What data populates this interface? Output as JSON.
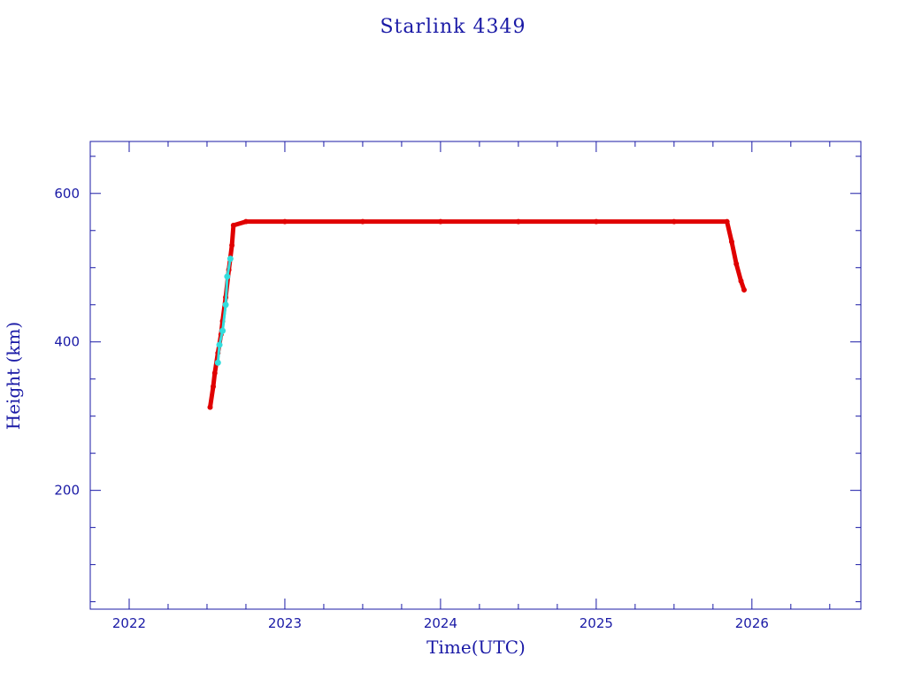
{
  "chart_data": {
    "type": "scatter",
    "title": "Starlink 4349",
    "xlabel": "Time(UTC)",
    "ylabel": "Height (km)",
    "xlim": [
      2021.75,
      2026.7
    ],
    "ylim": [
      40,
      670
    ],
    "x_ticks": [
      "2022",
      "2023",
      "2024",
      "2025",
      "2026"
    ],
    "x_tick_values": [
      2022,
      2023,
      2024,
      2025,
      2026
    ],
    "y_ticks": [
      "200",
      "400",
      "600"
    ],
    "y_tick_values": [
      200,
      400,
      600
    ],
    "grid": false,
    "legend": "none",
    "axis_color": "#1a1aa6",
    "series": [
      {
        "color": "#e00000",
        "x": [
          2022.52,
          2022.54,
          2022.55,
          2022.57,
          2022.59,
          2022.6,
          2022.62,
          2022.64,
          2022.66,
          2022.67,
          2022.75,
          2023.0,
          2023.5,
          2024.0,
          2024.5,
          2025.0,
          2025.5,
          2025.84,
          2025.87,
          2025.9,
          2025.93,
          2025.95
        ],
        "y": [
          312,
          340,
          358,
          385,
          410,
          428,
          460,
          497,
          530,
          557,
          562,
          562,
          562,
          562,
          562,
          562,
          562,
          562,
          535,
          505,
          482,
          470
        ]
      },
      {
        "color": "#33dddd",
        "x": [
          2022.57,
          2022.58,
          2022.6,
          2022.62,
          2022.63,
          2022.65
        ],
        "y": [
          372,
          396,
          415,
          450,
          488,
          512
        ]
      }
    ]
  }
}
